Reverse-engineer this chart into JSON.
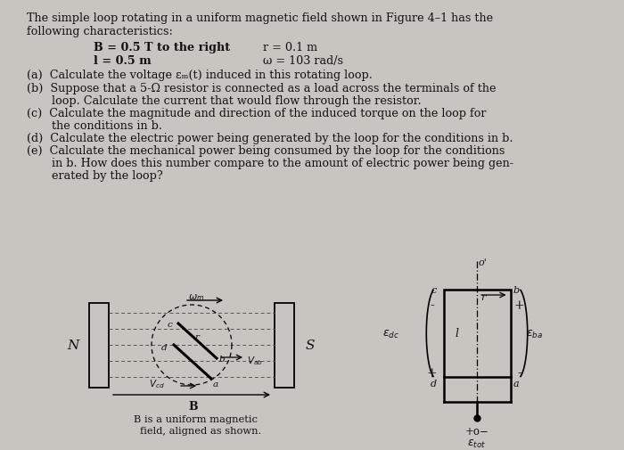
{
  "bg_color": "#c8c4c0",
  "text_color": "#111111",
  "title_line1": "The simple loop rotating in a uniform magnetic field shown in Figure 4–1 has the",
  "title_line2": "following characteristics:",
  "param1_left": "B = 0.5 T to the right",
  "param1_right": "r = 0.1 m",
  "param2_left": "l = 0.5 m",
  "param2_right": "ω = 103 rad/s",
  "q_a": "(a)  Calculate the voltage εₘ(t) induced in this rotating loop.",
  "q_b1": "(b)  Suppose that a 5-Ω resistor is connected as a load across the terminals of the",
  "q_b2": "       loop. Calculate the current that would flow through the resistor.",
  "q_c1": "(c)  Calculate the magnitude and direction of the induced torque on the loop for",
  "q_c2": "       the conditions in b.",
  "q_d": "(d)  Calculate the electric power being generated by the loop for the conditions in b.",
  "q_e1": "(e)  Calculate the mechanical power being consumed by the loop for the conditions",
  "q_e2": "       in b. How does this number compare to the amount of electric power being gen-",
  "q_e3": "       erated by the loop?",
  "caption1": "B is a uniform magnetic",
  "caption2": "field, aligned as shown.",
  "font_size": 9.2
}
